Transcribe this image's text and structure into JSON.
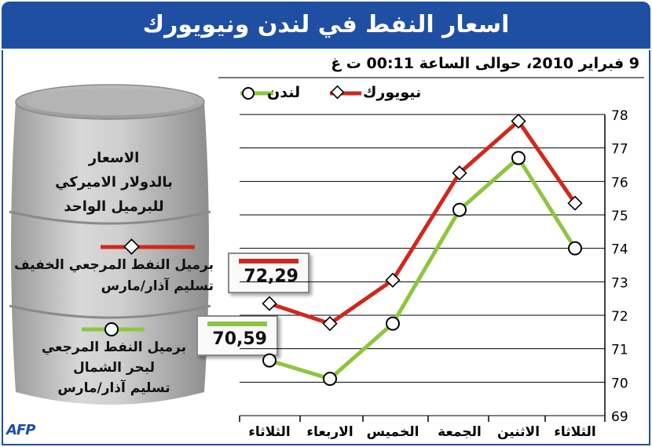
{
  "header": {
    "title": "اسعار النفط في لندن ونيويورك",
    "subtitle": "9 فبراير 2010، حوالى الساعة 00:11 ت غ"
  },
  "legend": {
    "newyork": "نيويورك",
    "london": "لندن"
  },
  "barrel": {
    "unit_line1": "الاسعار",
    "unit_line2": "بالدولار الاميركي",
    "unit_line3": "للبرميل الواحد",
    "wti_line1": "برميل النفط المرجعي الخفيف",
    "wti_line2": "تسليم آذار/مارس",
    "wti_value": "72,29",
    "brent_line1": "برميل النفط المرجعي",
    "brent_line2": "لبحر الشمال",
    "brent_line3": "تسليم آذار/مارس",
    "brent_value": "70,59"
  },
  "source": "AFP",
  "colors": {
    "title_bg": "#1f4fa3",
    "newyork": "#d0281c",
    "london": "#8cc63f"
  },
  "chart_data": {
    "type": "line",
    "categories": [
      "الثلاثاء",
      "الاثنين",
      "الجمعة",
      "الخميس",
      "الاربعاء",
      "الثلاثاء"
    ],
    "categories_order": "right-to-left",
    "series": [
      {
        "name": "نيويورك",
        "marker": "diamond",
        "color": "#d0281c",
        "values": [
          75.35,
          77.8,
          76.25,
          73.05,
          71.75,
          72.35
        ]
      },
      {
        "name": "لندن",
        "marker": "circle",
        "color": "#8cc63f",
        "values": [
          74.0,
          76.7,
          75.15,
          71.75,
          70.1,
          70.65
        ]
      }
    ],
    "ylim": [
      69,
      78
    ],
    "yticks": [
      69,
      70,
      71,
      72,
      73,
      74,
      75,
      76,
      77,
      78
    ],
    "y_axis_side": "right",
    "grid": true
  }
}
